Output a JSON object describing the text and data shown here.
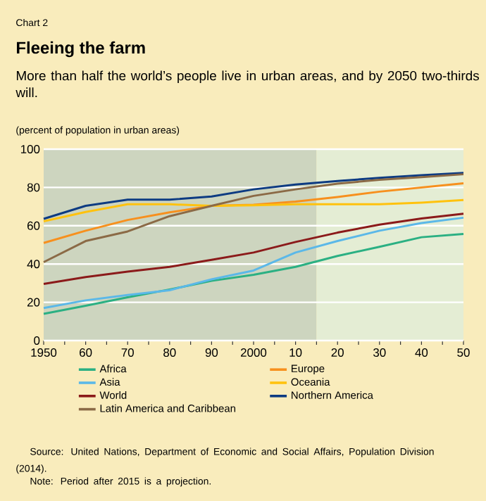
{
  "chart_data": {
    "type": "line",
    "title": "Fleeing the farm",
    "subtitle": "More than half the world’s people live in urban areas, and by 2050 two-thirds will.",
    "ylabel": "(percent of population in urban areas)",
    "annotations": [
      "Chart 2",
      "Source: United Nations, Department of Economic and Social Affairs, Population Division (2014).",
      "Note: Period after 2015 is a projection."
    ],
    "x": [
      1950,
      1960,
      1970,
      1980,
      1990,
      2000,
      2010,
      2020,
      2030,
      2040,
      2050
    ],
    "series": [
      {
        "name": "Africa",
        "color": "#2bb083",
        "values": [
          14,
          18.2,
          22.6,
          26.7,
          31.2,
          34.4,
          38.5,
          44.2,
          49,
          54,
          55.7
        ]
      },
      {
        "name": "Europe",
        "color": "#f7901e",
        "values": [
          51,
          57.4,
          63,
          67,
          70.4,
          71,
          72.6,
          75,
          77.8,
          80,
          82.2
        ]
      },
      {
        "name": "Asia",
        "color": "#5bb8e8",
        "values": [
          17,
          21,
          23.8,
          26.3,
          32,
          36.6,
          46,
          52,
          57.4,
          61.4,
          64.2
        ]
      },
      {
        "name": "Oceania",
        "color": "#ffc20e",
        "values": [
          62.3,
          67.2,
          71.2,
          71.2,
          70.4,
          70.7,
          71.2,
          71.2,
          71.2,
          72.1,
          73.4
        ]
      },
      {
        "name": "World",
        "color": "#8b1a1a",
        "values": [
          29.6,
          33.2,
          36,
          38.5,
          42.2,
          46,
          51.5,
          56.4,
          60.6,
          63.8,
          66.3
        ]
      },
      {
        "name": "Northern America",
        "color": "#0d3b82",
        "values": [
          63.6,
          70.4,
          73.6,
          73.6,
          75.3,
          79,
          81.5,
          83.4,
          85,
          86.4,
          87.6
        ]
      },
      {
        "name": "Latin America and Caribbean",
        "color": "#8b6a46",
        "values": [
          41,
          52,
          57,
          65,
          70.4,
          75.6,
          79,
          82,
          84,
          85.4,
          86.9
        ]
      }
    ],
    "xlim": [
      1950,
      2050
    ],
    "xticks": [
      1950,
      {
        "value": 1955,
        "label": null
      },
      {
        "value": 1960,
        "label": "60"
      },
      {
        "value": 1965,
        "label": null
      },
      {
        "value": 1970,
        "label": "70"
      },
      {
        "value": 1975,
        "label": null
      },
      {
        "value": 1980,
        "label": "80"
      },
      {
        "value": 1985,
        "label": null
      },
      {
        "value": 1990,
        "label": "90"
      },
      {
        "value": 1995,
        "label": null
      },
      2000,
      {
        "value": 2005,
        "label": null
      },
      {
        "value": 2010,
        "label": "10"
      },
      {
        "value": 2015,
        "label": null
      },
      {
        "value": 2020,
        "label": "20"
      },
      {
        "value": 2025,
        "label": null
      },
      {
        "value": 2030,
        "label": "30"
      },
      {
        "value": 2035,
        "label": null
      },
      {
        "value": 2040,
        "label": "40"
      },
      {
        "value": 2045,
        "label": null
      },
      {
        "value": 2050,
        "label": "50"
      }
    ],
    "ylim": [
      0,
      100
    ],
    "yticks": [
      0,
      20,
      40,
      60,
      80,
      100
    ],
    "grid": "y",
    "legend": "bottom",
    "bands": [
      {
        "axis": "x",
        "from": 1950,
        "to": 2015,
        "color": "#cdd5bf"
      },
      {
        "axis": "x",
        "from": 2015,
        "to": 2050,
        "color": "#e4edd4"
      }
    ]
  }
}
